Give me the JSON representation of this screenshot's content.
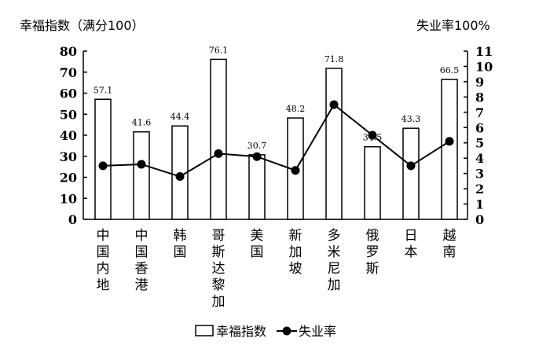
{
  "chart_data": {
    "type": "bar+line",
    "categories": [
      "中国内地",
      "中国香港",
      "韩国",
      "哥斯达黎加",
      "美国",
      "新加坡",
      "多米尼加",
      "俄罗斯",
      "日本",
      "越南"
    ],
    "series": [
      {
        "name": "幸福指数",
        "type": "bar",
        "axis": "left",
        "values": [
          57.1,
          41.6,
          44.4,
          76.1,
          30.7,
          48.2,
          71.8,
          34.5,
          43.3,
          66.5
        ]
      },
      {
        "name": "失业率",
        "type": "line",
        "axis": "right",
        "values": [
          3.5,
          3.6,
          2.8,
          4.3,
          4.1,
          3.2,
          7.5,
          5.5,
          3.5,
          5.1
        ]
      }
    ],
    "ylabel_left": "幸福指数（满分100）",
    "ylabel_right": "失业率100%",
    "ylim_left": [
      0,
      80
    ],
    "ylim_right": [
      0,
      11
    ],
    "yticks_left": [
      0,
      10,
      20,
      30,
      40,
      50,
      60,
      70,
      80
    ],
    "yticks_right": [
      0,
      1,
      2,
      3,
      4,
      5,
      6,
      7,
      8,
      9,
      10,
      11
    ],
    "grid": false,
    "legend": "bottom",
    "colors": {
      "bar_fill": "#ffffff",
      "stroke": "#000000"
    }
  }
}
